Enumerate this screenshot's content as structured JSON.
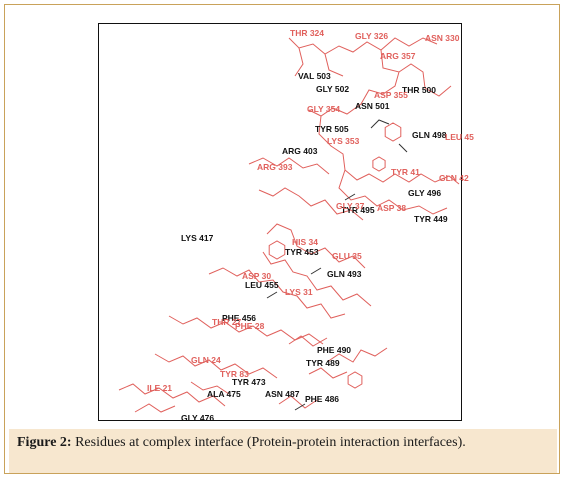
{
  "figure": {
    "label": "Figure 2:",
    "caption": "Residues at complex interface (Protein-protein interaction interfaces)."
  },
  "colors": {
    "partner_a_residues": "#111111",
    "partner_b_residues": "#e0605c",
    "caption_background": "#f7e7cf"
  },
  "residues_black": [
    "VAL 503",
    "GLY 502",
    "THR 500",
    "ASN 501",
    "TYR 505",
    "GLN 498",
    "ARG 403",
    "GLY 496",
    "TYR 495",
    "TYR 449",
    "LYS 417",
    "TYR 453",
    "GLN 493",
    "LEU 455",
    "PHE 456",
    "PHE 490",
    "TYR 489",
    "TYR 473",
    "ALA 475",
    "ASN 487",
    "PHE 486",
    "GLY 476"
  ],
  "residues_red": [
    "THR 324",
    "GLY 326",
    "ASN 330",
    "ARG 357",
    "ASP 355",
    "GLY 354",
    "LYS 353",
    "LEU 45",
    "ARG 393",
    "TYR 41",
    "GLN 42",
    "GLY 37",
    "ASP 38",
    "HIS 34",
    "GLU 35",
    "ASP 30",
    "LYS 31",
    "THR 27",
    "PHE 28",
    "GLN 24",
    "TYR 83",
    "ILE 21"
  ]
}
